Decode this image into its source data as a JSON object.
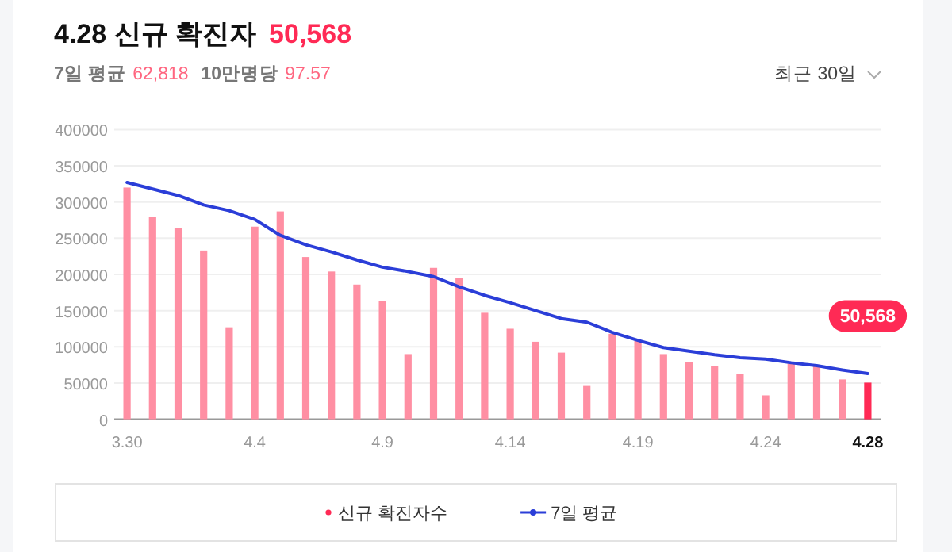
{
  "chart_data": {
    "type": "bar",
    "title": "4.28 신규 확진자",
    "annotations": [
      "50,568",
      "7일 평균",
      "62,818",
      "10만명당",
      "97.57",
      "최근 30일"
    ],
    "categories": [
      "3.30",
      null,
      null,
      null,
      null,
      "4.4",
      null,
      null,
      null,
      null,
      "4.9",
      null,
      null,
      null,
      null,
      "4.14",
      null,
      null,
      null,
      null,
      "4.19",
      null,
      null,
      null,
      null,
      "4.24",
      null,
      null,
      null,
      "4.28"
    ],
    "series": [
      {
        "name": "신규 확진자수",
        "colors": [
          "#ff8fa3",
          "#ff8fa3",
          "#ff8fa3",
          "#ff8fa3",
          "#ff8fa3",
          "#ff8fa3",
          "#ff8fa3",
          "#ff8fa3",
          "#ff8fa3",
          "#ff8fa3",
          "#ff8fa3",
          "#ff8fa3",
          "#ff8fa3",
          "#ff8fa3",
          "#ff8fa3",
          "#ff8fa3",
          "#ff8fa3",
          "#ff8fa3",
          "#ff8fa3",
          "#ff8fa3",
          "#ff8fa3",
          "#ff8fa3",
          "#ff8fa3",
          "#ff8fa3",
          "#ff8fa3",
          "#ff8fa3",
          "#ff8fa3",
          "#ff8fa3",
          "#ff8fa3",
          "#ff2a55"
        ],
        "values": [
          320000,
          279000,
          264000,
          233000,
          127000,
          266000,
          287000,
          224000,
          204000,
          186000,
          163000,
          90000,
          209000,
          195000,
          147000,
          125000,
          107000,
          92000,
          46000,
          118000,
          108000,
          90000,
          79000,
          73000,
          63000,
          33000,
          77000,
          74000,
          55000,
          50568
        ],
        "value_labels": [
          null,
          null,
          null,
          null,
          null,
          null,
          null,
          null,
          null,
          null,
          null,
          null,
          null,
          null,
          null,
          null,
          null,
          null,
          null,
          null,
          null,
          null,
          null,
          null,
          null,
          null,
          null,
          null,
          null,
          "50,568"
        ]
      },
      {
        "name": "7일 평균",
        "type": "line",
        "color": "#2b3ed8",
        "values": [
          327000,
          318000,
          309000,
          296000,
          288000,
          276000,
          254000,
          241000,
          231000,
          220000,
          210000,
          204000,
          197000,
          183000,
          171000,
          161000,
          150000,
          139000,
          134000,
          120000,
          109000,
          99000,
          94000,
          89000,
          85000,
          83000,
          78000,
          74000,
          68000,
          63000
        ]
      }
    ],
    "ylim": [
      0,
      400000
    ],
    "yticks": [
      0,
      50000,
      100000,
      150000,
      200000,
      250000,
      300000,
      350000,
      400000
    ],
    "grid": "y",
    "legend": "bottom"
  }
}
